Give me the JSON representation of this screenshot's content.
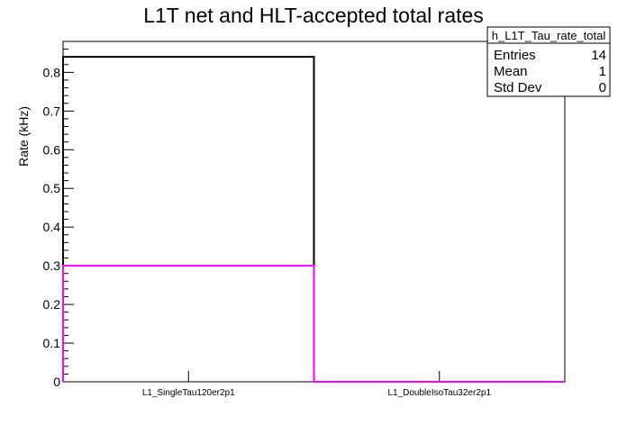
{
  "chart_data": {
    "type": "histogram",
    "title": "L1T net and HLT-accepted total rates",
    "ylabel": "Rate (kHz)",
    "xlabel": "",
    "categories": [
      "L1_SingleTau120er2p1",
      "L1_DoubleIsoTau32er2p1"
    ],
    "ylim": [
      0,
      0.88
    ],
    "y_major_ticks": [
      0,
      0.1,
      0.2,
      0.3,
      0.4,
      0.5,
      0.6,
      0.7,
      0.8
    ],
    "y_tick_labels": [
      "0",
      "0.1",
      "0.2",
      "0.3",
      "0.4",
      "0.5",
      "0.6",
      "0.7",
      "0.8"
    ],
    "grid": false,
    "series": [
      {
        "values": [
          0.84,
          0.0
        ],
        "color": "#000000"
      },
      {
        "values": [
          0.3,
          0.0
        ],
        "color": "#ff00ff"
      }
    ],
    "stats_box": {
      "name": "h_L1T_Tau_rate_total",
      "rows": [
        {
          "label": "Entries",
          "value": "14"
        },
        {
          "label": "Mean",
          "value": "1"
        },
        {
          "label": "Std Dev",
          "value": "0"
        }
      ]
    }
  }
}
